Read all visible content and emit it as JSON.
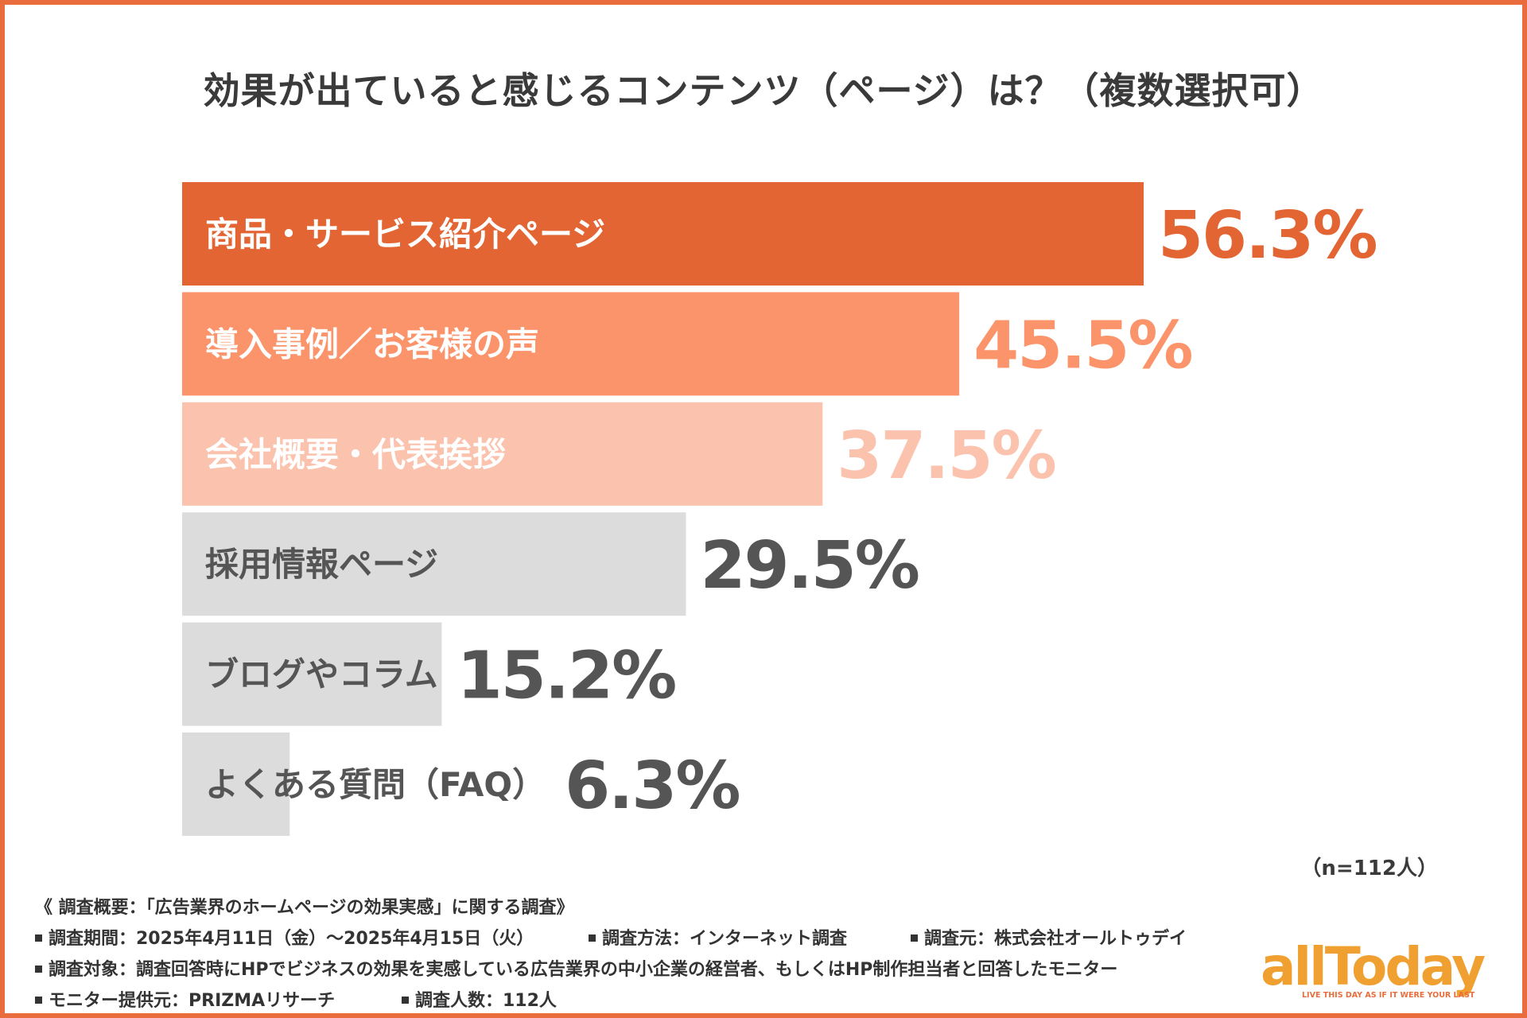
{
  "chart_data": {
    "type": "bar",
    "orientation": "horizontal",
    "title": "効果が出ていると感じるコンテンツ（ページ）は？（複数選択可）",
    "categories": [
      "商品・サービス紹介ページ",
      "導入事例／お客様の声",
      "会社概要・代表挨拶",
      "採用情報ページ",
      "ブログやコラム",
      "よくある質問（FAQ）"
    ],
    "values": [
      56.3,
      45.5,
      37.5,
      29.5,
      15.2,
      6.3
    ],
    "value_labels": [
      "56.3%",
      "45.5%",
      "37.5%",
      "29.5%",
      "15.2%",
      "6.3%"
    ],
    "bar_colors": [
      "#e46534",
      "#fb946a",
      "#fbc2ad",
      "#dcdcdc",
      "#dcdcdc",
      "#dcdcdc"
    ],
    "label_colors": [
      "#ffffff",
      "#ffffff",
      "#ffffff",
      "#555555",
      "#555555",
      "#555555"
    ],
    "value_colors": [
      "#e46534",
      "#fb946a",
      "#fbc2ad",
      "#555555",
      "#555555",
      "#555555"
    ],
    "xlim": [
      0,
      100
    ],
    "xlabel": "",
    "ylabel": "",
    "grid": false,
    "legend": "none"
  },
  "sample_note": "（n=112人）",
  "footer": {
    "summary": "《 調査概要：「広告業界のホームページの効果実感」に関する調査》",
    "period": "調査期間：2025年4月11日（金）～2025年4月15日（火）",
    "method": "調査方法：インターネット調査",
    "source": "調査元：株式会社オールトゥデイ",
    "target": "調査対象：調査回答時にHPでビジネスの効果を実感している広告業界の中小企業の経営者、もしくはHP制作担当者と回答したモニター",
    "provider": "モニター提供元：PRIZMAリサーチ",
    "count": "調査人数：112人"
  },
  "logo": {
    "name": "allToday",
    "tagline": "LIVE THIS DAY AS IF IT WERE YOUR LAST",
    "color": "#f0a030"
  }
}
